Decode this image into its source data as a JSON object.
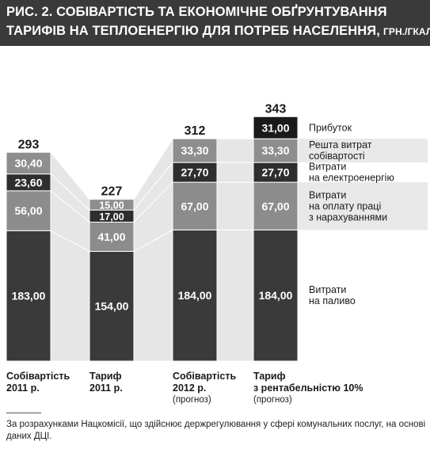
{
  "title": {
    "line1": "РИС. 2. СОБІВАРТІСТЬ ТА ЕКОНОМІЧНЕ ОБҐРУНТУВАННЯ",
    "line2": "ТАРИФІВ НА ТЕПЛОЕНЕРГІЮ ДЛЯ ПОТРЕБ НАСЕЛЕННЯ,",
    "unit": "ГРН./ГКАЛ"
  },
  "colors": {
    "title_bg": "#3a3a3a",
    "fuel": "#3a3a3a",
    "labor": "#8c8c8c",
    "electricity": "#2e2e2e",
    "other_costs": "#8e8e8e",
    "profit": "#1a1a1a",
    "connector": "#e6e6e6",
    "band": "#e8e8e8"
  },
  "chart_data": {
    "type": "bar",
    "stacked": true,
    "categories": [
      {
        "line1": "Собівартість",
        "line2": "2011 р.",
        "note": ""
      },
      {
        "line1": "Тариф",
        "line2": "2011 р.",
        "note": ""
      },
      {
        "line1": "Собівартість",
        "line2": "2012 р.",
        "note": "(прогноз)"
      },
      {
        "line1": "Тариф",
        "line2": "з рентабельністю 10%",
        "note": "(прогноз)"
      }
    ],
    "series": [
      {
        "name": "Витрати на паливо",
        "name_lines": [
          "Витрати",
          "на паливо"
        ],
        "color_key": "fuel",
        "values": [
          183.0,
          154.0,
          184.0,
          184.0
        ]
      },
      {
        "name": "Витрати на оплату праці з нарахуваннями",
        "name_lines": [
          "Витрати",
          "на оплату праці",
          "з нарахуваннями"
        ],
        "color_key": "labor",
        "values": [
          56.0,
          41.0,
          67.0,
          67.0
        ]
      },
      {
        "name": "Витрати на електроенергію",
        "name_lines": [
          "Витрати",
          "на електроенергію"
        ],
        "color_key": "electricity",
        "values": [
          23.6,
          17.0,
          27.7,
          27.7
        ]
      },
      {
        "name": "Решта витрат собівартості",
        "name_lines": [
          "Решта витрат",
          "собівартості"
        ],
        "color_key": "other_costs",
        "values": [
          30.4,
          15.0,
          33.3,
          33.3
        ]
      },
      {
        "name": "Прибуток",
        "name_lines": [
          "Прибуток"
        ],
        "color_key": "profit",
        "values": [
          null,
          null,
          null,
          31.0
        ]
      }
    ],
    "value_labels": [
      [
        "183,00",
        "56,00",
        "23,60",
        "30,40",
        ""
      ],
      [
        "154,00",
        "41,00",
        "17,00",
        "15,00",
        ""
      ],
      [
        "184,00",
        "67,00",
        "27,70",
        "33,30",
        ""
      ],
      [
        "184,00",
        "67,00",
        "27,70",
        "33,30",
        "31,00"
      ]
    ],
    "totals": [
      293,
      227,
      312,
      343
    ],
    "total_labels": [
      "293",
      "227",
      "312",
      "343"
    ],
    "legend_position": "right",
    "grid": false
  },
  "footnote": "За розрахунками Нацкомісії, що здійснює держрегулювання у сфері комунальних послуг, на основі даних ДЦІ."
}
